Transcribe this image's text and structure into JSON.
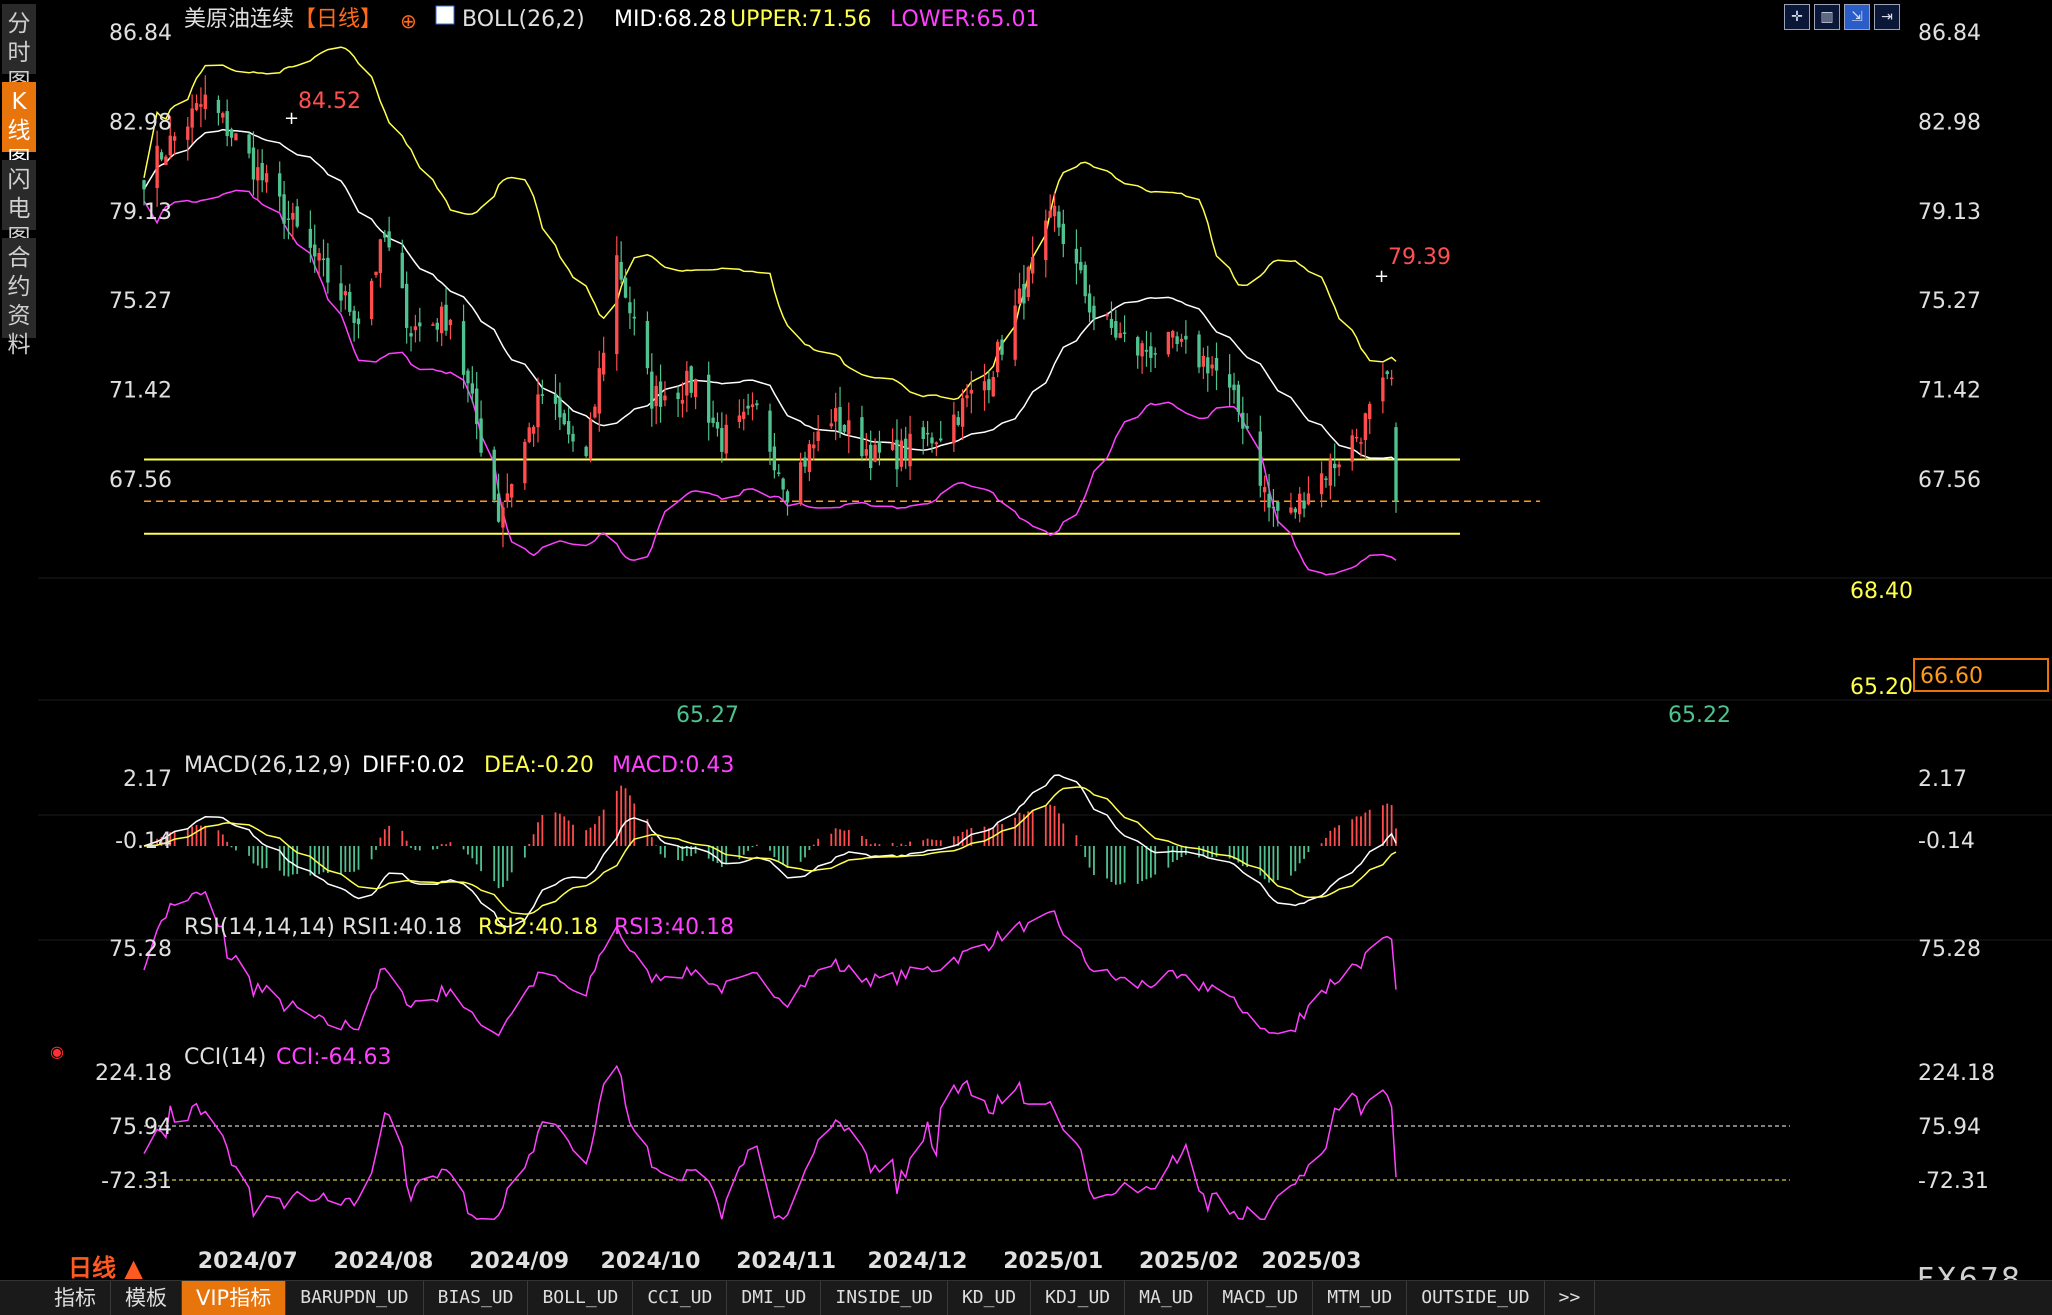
{
  "sidebar": {
    "tabs": [
      "分时图",
      "K线图",
      "闪电图",
      "合约资料"
    ],
    "active": 1
  },
  "header": {
    "title": "美原油连续",
    "period": "【日线】",
    "boll": {
      "label": "BOLL(26,2)",
      "mid": "MID:68.28",
      "upper": "UPPER:71.56",
      "lower": "LOWER:65.01"
    }
  },
  "toolbar_icons": [
    "crosshair-icon",
    "layout-icon",
    "indicator-icon",
    "expand-icon"
  ],
  "main_axis": {
    "ticks": [
      "86.84",
      "82.98",
      "79.13",
      "75.27",
      "71.42",
      "67.56"
    ]
  },
  "annotations": {
    "high1": "84.52",
    "high2": "79.39",
    "low1": "65.27",
    "low2": "65.22",
    "level_upper": "68.40",
    "level_lower": "65.20",
    "last_price": "66.60"
  },
  "macd": {
    "label": "MACD(26,12,9)",
    "diff": "DIFF:0.02",
    "dea": "DEA:-0.20",
    "macd": "MACD:0.43",
    "ticks": [
      "2.17",
      "-0.14"
    ]
  },
  "rsi": {
    "label": "RSI(14,14,14)",
    "rsi1": "RSI1:40.18",
    "rsi2": "RSI2:40.18",
    "rsi3": "RSI3:40.18",
    "ticks": [
      "75.28"
    ]
  },
  "cci": {
    "label": "CCI(14)",
    "value": "CCI:-64.63",
    "ticks": [
      "224.18",
      "75.94",
      "-72.31"
    ]
  },
  "x_axis": {
    "labels": [
      "2024/07",
      "2024/08",
      "2024/09",
      "2024/10",
      "2024/11",
      "2024/12",
      "2025/01",
      "2025/02",
      "2025/03"
    ]
  },
  "footer": {
    "period": "日线 ▲",
    "logo": "FX678"
  },
  "tabs": [
    "指标",
    "模板",
    "VIP指标",
    "BARUPDN_UD",
    "BIAS_UD",
    "BOLL_UD",
    "CCI_UD",
    "DMI_UD",
    "INSIDE_UD",
    "KD_UD",
    "KDJ_UD",
    "MA_UD",
    "MACD_UD",
    "MTM_UD",
    "OUTSIDE_UD",
    ">>"
  ],
  "active_tab": 2,
  "colors": {
    "up": "#ff4d4d",
    "down": "#4fc28f",
    "mid": "#ffffff",
    "upper": "#ffff4d",
    "lower": "#ff40ff",
    "accent": "#e8740c"
  },
  "chart_data": {
    "type": "candlestick",
    "anchors": [
      {
        "date": "2024/06/21",
        "close": 80.7
      },
      {
        "date": "2024/07/05",
        "close": 83.9
      },
      {
        "date": "2024/07/12",
        "close": 82.2
      },
      {
        "date": "2024/07/19",
        "close": 80.2
      },
      {
        "date": "2024/08/02",
        "close": 76.2
      },
      {
        "date": "2024/08/09",
        "close": 74.5
      },
      {
        "date": "2024/08/15",
        "close": 77.9
      },
      {
        "date": "2024/08/21",
        "close": 74.0
      },
      {
        "date": "2024/08/30",
        "close": 74.6
      },
      {
        "date": "2024/09/10",
        "close": 66.0
      },
      {
        "date": "2024/09/20",
        "close": 71.2
      },
      {
        "date": "2024/09/30",
        "close": 68.3
      },
      {
        "date": "2024/10/07",
        "close": 77.1
      },
      {
        "date": "2024/10/15",
        "close": 71.1
      },
      {
        "date": "2024/10/25",
        "close": 71.7
      },
      {
        "date": "2024/10/31",
        "close": 69.2
      },
      {
        "date": "2024/11/08",
        "close": 70.4
      },
      {
        "date": "2024/11/15",
        "close": 67.2
      },
      {
        "date": "2024/11/25",
        "close": 70.3
      },
      {
        "date": "2024/12/05",
        "close": 68.5
      },
      {
        "date": "2024/12/10",
        "close": 68.6
      },
      {
        "date": "2024/12/20",
        "close": 69.6
      },
      {
        "date": "2024/12/31",
        "close": 72.0
      },
      {
        "date": "2025/01/15",
        "close": 79.0
      },
      {
        "date": "2025/01/24",
        "close": 74.6
      },
      {
        "date": "2025/02/03",
        "close": 73.1
      },
      {
        "date": "2025/02/11",
        "close": 73.3
      },
      {
        "date": "2025/02/20",
        "close": 72.5
      },
      {
        "date": "2025/02/28",
        "close": 69.8
      },
      {
        "date": "2025/03/05",
        "close": 66.3
      },
      {
        "date": "2025/03/10",
        "close": 66.0
      },
      {
        "date": "2025/03/14",
        "close": 67.2
      },
      {
        "date": "2025/03/20",
        "close": 68.3
      },
      {
        "date": "2025/03/26",
        "close": 69.7
      },
      {
        "date": "2025/03/31",
        "close": 71.4
      },
      {
        "date": "2025/04/02",
        "close": 71.7
      },
      {
        "date": "2025/04/03",
        "close": 66.6
      }
    ],
    "y_ticks": [
      86.84,
      82.98,
      79.13,
      75.27,
      71.42,
      67.56
    ],
    "horizontal_levels": [
      68.4,
      65.2
    ],
    "last_price": 66.6,
    "boll_last": {
      "mid": 68.28,
      "upper": 71.56,
      "lower": 65.01
    },
    "macd_last": {
      "diff": 0.02,
      "dea": -0.2,
      "macd": 0.43
    },
    "rsi_last": 40.18,
    "cci_last": -64.63,
    "cci_ticks": [
      224.18,
      75.94,
      -72.31
    ]
  }
}
